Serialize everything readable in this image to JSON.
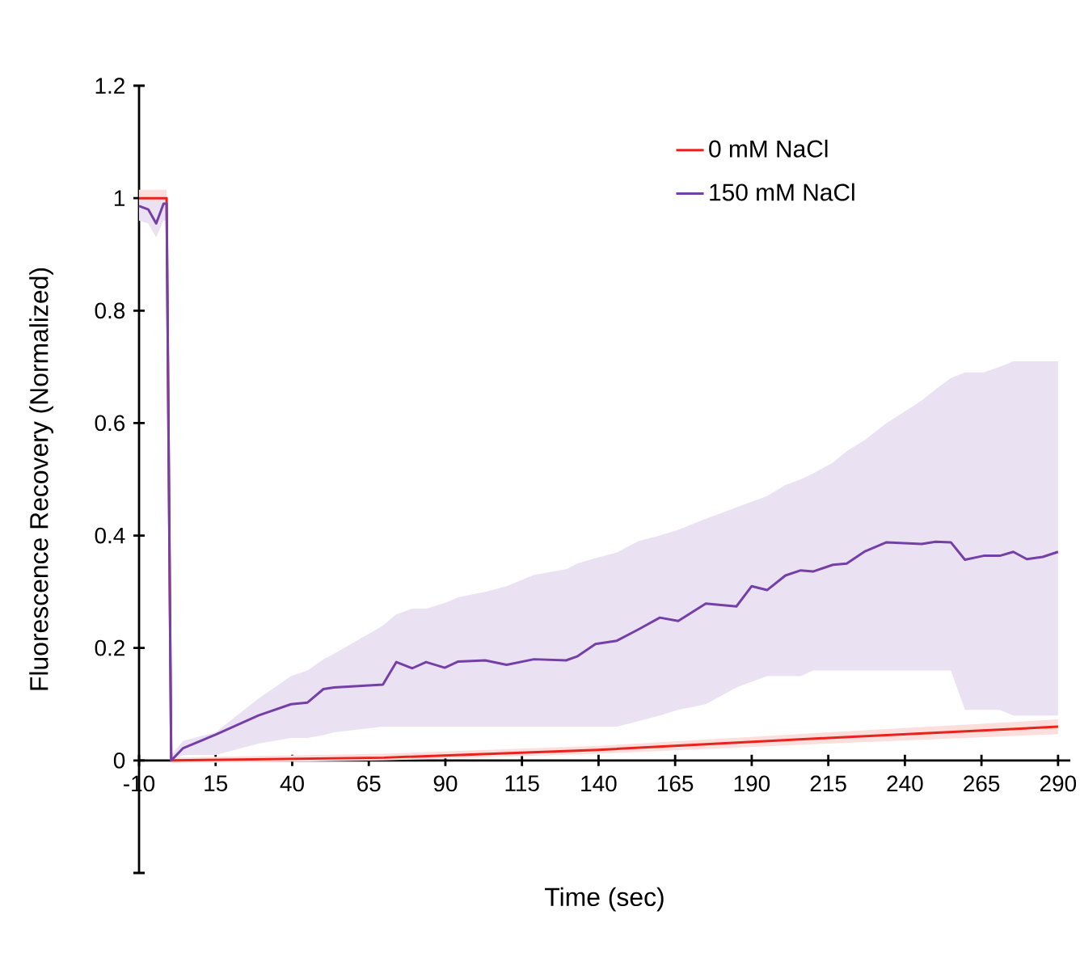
{
  "chart_data": {
    "type": "line",
    "xlabel": "Time (sec)",
    "ylabel": "Fluorescence Recovery (Normalized)",
    "xlim": [
      -10,
      294
    ],
    "ylim": [
      -0.2,
      1.2
    ],
    "xticks": [
      -10,
      15,
      40,
      65,
      90,
      115,
      140,
      165,
      190,
      215,
      240,
      265,
      290
    ],
    "yticks": [
      {
        "value": -0.2,
        "label": null
      },
      0,
      0.2,
      0.4,
      0.6,
      0.8,
      1,
      1.2
    ],
    "legend": "top right",
    "grid": false,
    "series": [
      {
        "name": "0 mM NaCl",
        "color": "#e8221c",
        "x": [
          -10,
          -1,
          0.5,
          70,
          140,
          215,
          290
        ],
        "values": [
          1,
          1,
          0,
          0.005,
          0.019,
          0.04,
          0.06
        ],
        "lower": [
          0.985,
          0.985,
          -0.005,
          0,
          0.012,
          0.03,
          0.047
        ],
        "upper": [
          1.015,
          1.015,
          0.005,
          0.012,
          0.026,
          0.05,
          0.073
        ]
      },
      {
        "name": "150 mM NaCl",
        "color": "#7440a8",
        "x": [
          -10,
          -7,
          -4.4,
          -2,
          -1,
          0.5,
          4.4,
          15,
          29,
          39.6,
          45,
          50.2,
          53.7,
          69.6,
          74,
          79.2,
          83.7,
          89.8,
          94.2,
          103,
          110,
          118.9,
          129.4,
          133,
          139,
          146,
          153,
          160,
          166,
          175,
          185,
          190,
          195,
          201,
          206,
          210,
          216.5,
          221,
          227,
          234,
          245.5,
          250,
          255,
          259.6,
          265.7,
          271,
          275.4,
          279.8,
          285,
          290
        ],
        "values": [
          0.986,
          0.98,
          0.955,
          0.99,
          0.99,
          0,
          0.022,
          0.046,
          0.08,
          0.1,
          0.103,
          0.127,
          0.13,
          0.135,
          0.175,
          0.164,
          0.175,
          0.165,
          0.176,
          0.178,
          0.17,
          0.18,
          0.178,
          0.185,
          0.207,
          0.213,
          0.233,
          0.254,
          0.248,
          0.279,
          0.274,
          0.31,
          0.303,
          0.329,
          0.338,
          0.336,
          0.348,
          0.35,
          0.372,
          0.388,
          0.385,
          0.389,
          0.388,
          0.357,
          0.364,
          0.364,
          0.371,
          0.358,
          0.362,
          0.371
        ],
        "lower": [
          0.96,
          0.955,
          0.93,
          0.96,
          0.96,
          0,
          0.01,
          0.01,
          0.03,
          0.04,
          0.04,
          0.045,
          0.05,
          0.06,
          0.06,
          0.06,
          0.06,
          0.06,
          0.06,
          0.06,
          0.06,
          0.06,
          0.06,
          0.06,
          0.06,
          0.06,
          0.07,
          0.08,
          0.09,
          0.1,
          0.13,
          0.14,
          0.15,
          0.15,
          0.15,
          0.16,
          0.16,
          0.16,
          0.16,
          0.16,
          0.16,
          0.16,
          0.16,
          0.09,
          0.09,
          0.09,
          0.08,
          0.08,
          0.08,
          0.08
        ],
        "upper": [
          1,
          1,
          0.99,
          1,
          1,
          0.01,
          0.035,
          0.05,
          0.11,
          0.15,
          0.16,
          0.18,
          0.19,
          0.24,
          0.26,
          0.27,
          0.27,
          0.28,
          0.29,
          0.3,
          0.31,
          0.33,
          0.34,
          0.35,
          0.36,
          0.37,
          0.39,
          0.4,
          0.41,
          0.43,
          0.45,
          0.46,
          0.47,
          0.49,
          0.5,
          0.51,
          0.53,
          0.55,
          0.57,
          0.6,
          0.64,
          0.66,
          0.68,
          0.69,
          0.69,
          0.7,
          0.71,
          0.71,
          0.71,
          0.71
        ]
      }
    ]
  }
}
